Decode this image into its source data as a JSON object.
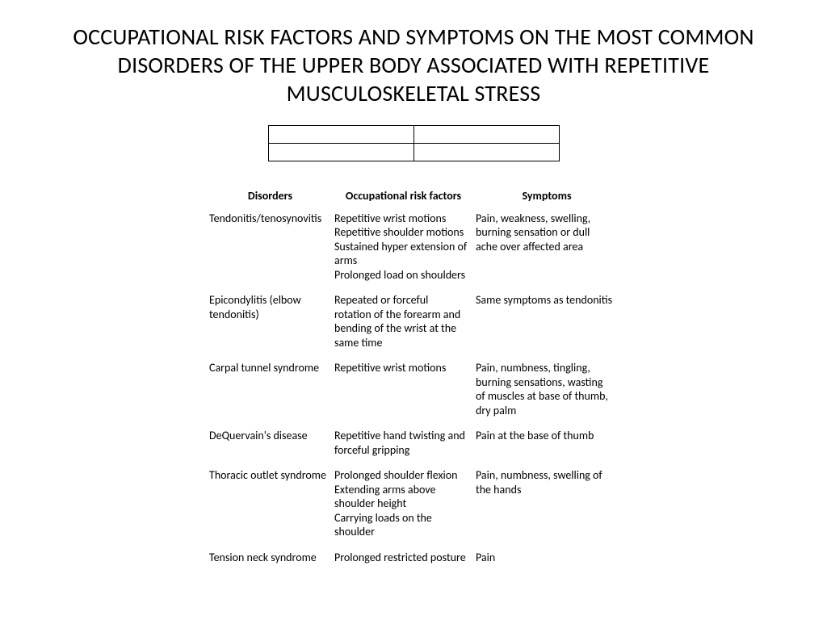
{
  "title": "OCCUPATIONAL RISK FACTORS AND SYMPTOMS ON THE MOST COMMON DISORDERS OF THE UPPER BODY ASSOCIATED WITH REPETITIVE MUSCULOSKELETAL STRESS",
  "columns": [
    "Disorders",
    "Occupational risk factors",
    "Symptoms"
  ],
  "rows": [
    {
      "disorder": "Tendonitis/tenosynovitis",
      "risk": "Repetitive wrist motions\nRepetitive shoulder motions\nSustained hyper extension of arms\nProlonged load on shoulders",
      "symptoms": "Pain, weakness, swelling, burning sensation or dull ache over affected area"
    },
    {
      "disorder": "Epicondylitis (elbow tendonitis)",
      "risk": "Repeated or forceful rotation of the forearm and bending of the wrist at the same time",
      "symptoms": "Same symptoms as tendonitis"
    },
    {
      "disorder": "Carpal tunnel syndrome",
      "risk": "Repetitive wrist motions",
      "symptoms": "Pain, numbness, tingling, burning sensations, wasting of muscles at base of thumb, dry palm"
    },
    {
      "disorder": "DeQuervain's disease",
      "risk": "Repetitive hand twisting and forceful gripping",
      "symptoms": "Pain at the base of thumb"
    },
    {
      "disorder": "Thoracic outlet syndrome",
      "risk": "Prolonged shoulder flexion\nExtending arms above shoulder height\nCarrying loads on the shoulder",
      "symptoms": "Pain, numbness, swelling of the hands"
    },
    {
      "disorder": "Tension neck syndrome",
      "risk": "Prolonged restricted posture",
      "symptoms": "Pain"
    }
  ],
  "style": {
    "background_color": "#ffffff",
    "text_color": "#000000",
    "title_fontsize": 28,
    "body_fontsize": 14,
    "small_table_rows": 2,
    "small_table_cols": 2,
    "small_table_cell_width": 180,
    "small_table_cell_height": 22
  }
}
